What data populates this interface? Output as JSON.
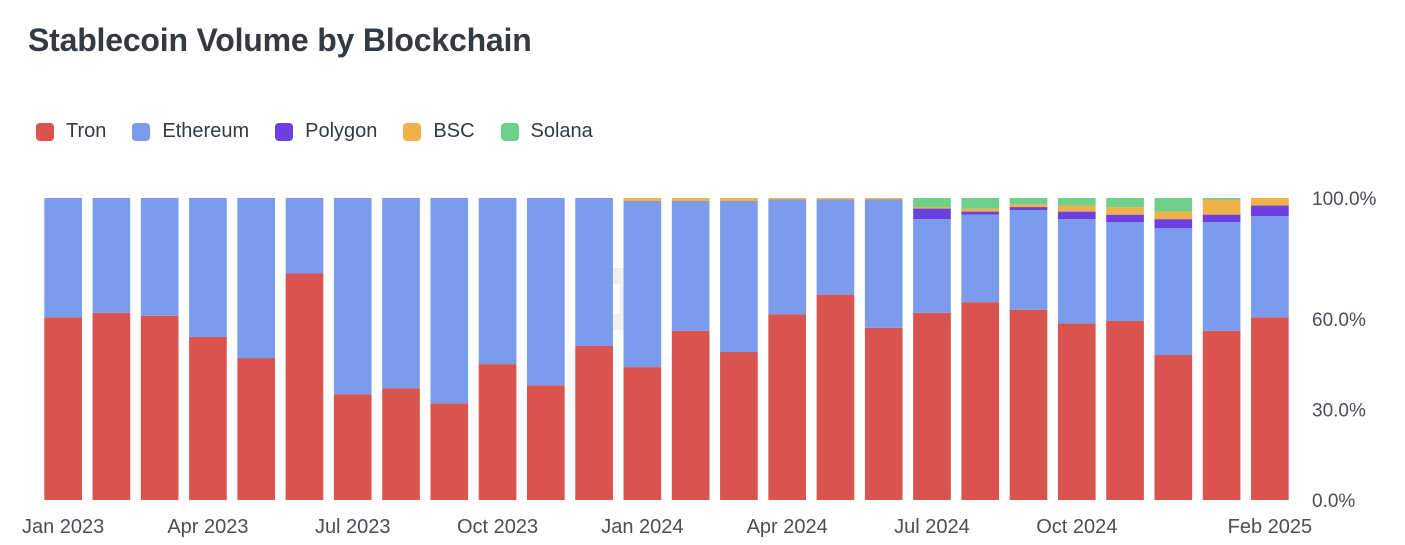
{
  "chart_data": {
    "type": "bar",
    "stacked": true,
    "normalized": true,
    "title": "Stablecoin Volume by Blockchain",
    "legend_position": "top-left",
    "categories": [
      "Jan 2023",
      "Feb 2023",
      "Mar 2023",
      "Apr 2023",
      "May 2023",
      "Jun 2023",
      "Jul 2023",
      "Aug 2023",
      "Sep 2023",
      "Oct 2023",
      "Nov 2023",
      "Dec 2023",
      "Jan 2024",
      "Feb 2024",
      "Mar 2024",
      "Apr 2024",
      "May 2024",
      "Jun 2024",
      "Jul 2024",
      "Aug 2024",
      "Sep 2024",
      "Oct 2024",
      "Nov 2024",
      "Dec 2024",
      "Jan 2025",
      "Feb 2025"
    ],
    "x_tick_labels": [
      "Jan 2023",
      "Apr 2023",
      "Jul 2023",
      "Oct 2023",
      "Jan 2024",
      "Apr 2024",
      "Jul 2024",
      "Oct 2024",
      "Feb 2025"
    ],
    "x_tick_index": [
      0,
      3,
      6,
      9,
      12,
      15,
      18,
      21,
      25
    ],
    "y_ticks": [
      0,
      30,
      60,
      100
    ],
    "y_tick_labels": [
      "0.0%",
      "30.0%",
      "60.0%",
      "100.0%"
    ],
    "ylim": [
      0,
      100
    ],
    "grid": false,
    "series": [
      {
        "name": "Tron",
        "color": "#d9534f",
        "values": [
          60.5,
          62,
          61,
          54,
          47,
          75,
          35,
          37,
          32,
          45,
          38,
          51,
          44,
          56,
          49,
          61.5,
          68,
          57,
          62,
          65.5,
          63,
          58.5,
          59,
          48,
          56,
          60.5
        ]
      },
      {
        "name": "Ethereum",
        "color": "#7b9bec",
        "values": [
          39.5,
          38,
          39,
          46,
          53,
          25,
          65,
          63,
          68,
          55,
          62,
          49,
          55,
          43,
          50,
          38,
          31.5,
          42.5,
          31,
          29,
          33,
          34.5,
          32.5,
          42,
          36,
          33.5
        ]
      },
      {
        "name": "Polygon",
        "color": "#6b3fe0",
        "values": [
          0,
          0,
          0,
          0,
          0,
          0,
          0,
          0,
          0,
          0,
          0,
          0,
          0,
          0,
          0,
          0,
          0,
          0,
          3.5,
          1,
          1,
          2.5,
          2.5,
          3,
          2.5,
          3.5
        ]
      },
      {
        "name": "BSC",
        "color": "#f0b04a",
        "values": [
          0,
          0,
          0,
          0,
          0,
          0,
          0,
          0,
          0,
          0,
          0,
          0,
          1,
          1,
          1,
          0.5,
          0.5,
          0.5,
          0.5,
          1,
          1,
          2,
          2.5,
          2.5,
          5,
          2.5
        ]
      },
      {
        "name": "Solana",
        "color": "#6fd08c",
        "values": [
          0,
          0,
          0,
          0,
          0,
          0,
          0,
          0,
          0,
          0,
          0,
          0,
          0,
          0,
          0,
          0,
          0,
          0,
          3,
          3.5,
          2,
          2.5,
          3,
          4.5,
          0.5,
          0
        ]
      }
    ]
  }
}
